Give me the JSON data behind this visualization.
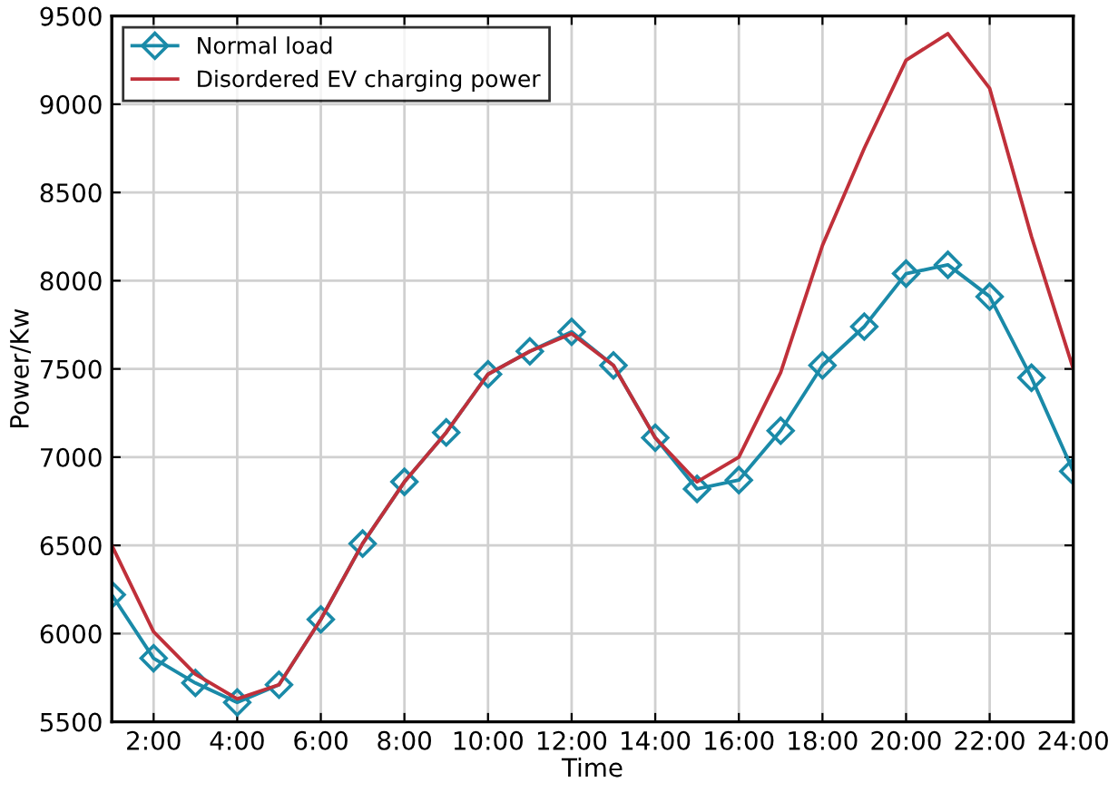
{
  "chart_data": {
    "type": "line",
    "xlabel": "Time",
    "ylabel": "Power/Kw",
    "x": [
      1,
      2,
      3,
      4,
      5,
      6,
      7,
      8,
      9,
      10,
      11,
      12,
      13,
      14,
      15,
      16,
      17,
      18,
      19,
      20,
      21,
      22,
      23,
      24
    ],
    "series": [
      {
        "name": "Normal load",
        "color": "#1a8aa8",
        "marker": "diamond",
        "values": [
          6220,
          5860,
          5720,
          5610,
          5710,
          6080,
          6510,
          6860,
          7140,
          7470,
          7600,
          7710,
          7520,
          7110,
          6820,
          6870,
          7150,
          7520,
          7740,
          8040,
          8090,
          7910,
          7450,
          6920
        ]
      },
      {
        "name": "Disordered EV charging power",
        "color": "#c0303a",
        "marker": "none",
        "values": [
          6500,
          6010,
          5770,
          5630,
          5710,
          6080,
          6510,
          6860,
          7140,
          7470,
          7600,
          7700,
          7520,
          7110,
          6860,
          7000,
          7480,
          8200,
          8750,
          9250,
          9400,
          9090,
          8250,
          7500
        ]
      }
    ],
    "xlim": [
      1,
      24
    ],
    "xticks": [
      {
        "value": 2,
        "label": "2:00"
      },
      {
        "value": 4,
        "label": "4:00"
      },
      {
        "value": 6,
        "label": "6:00"
      },
      {
        "value": 8,
        "label": "8:00"
      },
      {
        "value": 10,
        "label": "10:00"
      },
      {
        "value": 12,
        "label": "12:00"
      },
      {
        "value": 14,
        "label": "14:00"
      },
      {
        "value": 16,
        "label": "16:00"
      },
      {
        "value": 18,
        "label": "18:00"
      },
      {
        "value": 20,
        "label": "20:00"
      },
      {
        "value": 22,
        "label": "22:00"
      },
      {
        "value": 24,
        "label": "24:00"
      }
    ],
    "ylim": [
      5500,
      9500
    ],
    "yticks": [
      5500,
      6000,
      6500,
      7000,
      7500,
      8000,
      8500,
      9000,
      9500
    ],
    "grid": true,
    "legend": "top left",
    "line_style": "solid"
  }
}
